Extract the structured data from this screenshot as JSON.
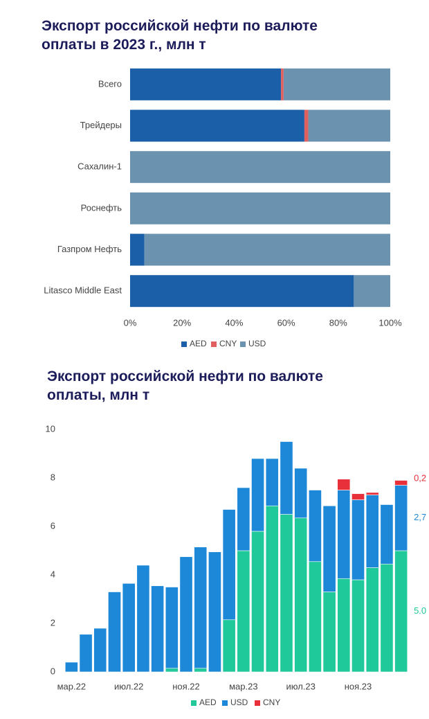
{
  "chart_data": [
    {
      "type": "bar",
      "orientation": "horizontal",
      "stacked": true,
      "title": "Экспорт российской нефти по валюте оплаты в 2023 г., млн т",
      "categories": [
        "Всего",
        "Трейдеры",
        "Сахалин-1",
        "Роснефть",
        "Газпром Нефть",
        "Litasco Middle East"
      ],
      "series": [
        {
          "name": "AED",
          "color": "#1a5fa8",
          "values": [
            58,
            67,
            0,
            0,
            5.5,
            86
          ]
        },
        {
          "name": "CNY",
          "color": "#e06060",
          "values": [
            1,
            1.5,
            0,
            0,
            0,
            0
          ]
        },
        {
          "name": "USD",
          "color": "#6b93b0",
          "values": [
            41,
            31.5,
            100,
            100,
            94.5,
            14
          ]
        }
      ],
      "xlim": [
        0,
        100
      ],
      "xticks": [
        {
          "value": 0,
          "label": "0%"
        },
        {
          "value": 20,
          "label": "20%"
        },
        {
          "value": 40,
          "label": "40%"
        },
        {
          "value": 60,
          "label": "60%"
        },
        {
          "value": 80,
          "label": "80%"
        },
        {
          "value": 100,
          "label": "100%"
        }
      ]
    },
    {
      "type": "bar",
      "orientation": "vertical",
      "stacked": true,
      "title": "Экспорт российской нефти по валюте оплаты, млн т",
      "categories": [
        "мар.22",
        null,
        null,
        null,
        "июл.22",
        null,
        null,
        null,
        "ноя.22",
        null,
        null,
        null,
        "мар.23",
        null,
        null,
        null,
        "июл.23",
        null,
        null,
        null,
        "ноя.23",
        null,
        null,
        null
      ],
      "series": [
        {
          "name": "AED",
          "color": "#1fc99a",
          "values": [
            0,
            0,
            0,
            0,
            0,
            0,
            0,
            0.15,
            0,
            0.15,
            0,
            2.15,
            5.0,
            5.8,
            6.85,
            6.5,
            6.35,
            4.55,
            3.3,
            3.85,
            3.8,
            4.3,
            4.45,
            5.0
          ],
          "value_labels": [
            null,
            null,
            null,
            null,
            null,
            null,
            null,
            null,
            null,
            null,
            null,
            null,
            null,
            null,
            null,
            null,
            null,
            null,
            null,
            null,
            null,
            null,
            null,
            "5.0"
          ]
        },
        {
          "name": "USD",
          "color": "#1e88d8",
          "values": [
            0.4,
            1.55,
            1.8,
            3.3,
            3.65,
            4.4,
            3.55,
            3.35,
            4.75,
            5.0,
            4.95,
            4.55,
            2.6,
            3.0,
            1.95,
            3.0,
            2.05,
            2.95,
            3.55,
            3.65,
            3.3,
            3.0,
            2.45,
            2.7
          ],
          "value_labels": [
            null,
            null,
            null,
            null,
            null,
            null,
            null,
            null,
            null,
            null,
            null,
            null,
            null,
            null,
            null,
            null,
            null,
            null,
            null,
            null,
            null,
            null,
            null,
            "2,7"
          ]
        },
        {
          "name": "CNY",
          "color": "#e8303a",
          "values": [
            0,
            0,
            0,
            0,
            0,
            0,
            0,
            0,
            0,
            0,
            0,
            0,
            0,
            0,
            0,
            0,
            0,
            0,
            0,
            0.45,
            0.25,
            0.1,
            0,
            0.2
          ],
          "value_labels": [
            null,
            null,
            null,
            null,
            null,
            null,
            null,
            null,
            null,
            null,
            null,
            null,
            null,
            null,
            null,
            null,
            null,
            null,
            null,
            null,
            null,
            null,
            null,
            "0,2"
          ]
        }
      ],
      "ylim": [
        0,
        10
      ],
      "yticks": [
        0,
        2,
        4,
        6,
        8,
        10
      ]
    }
  ]
}
